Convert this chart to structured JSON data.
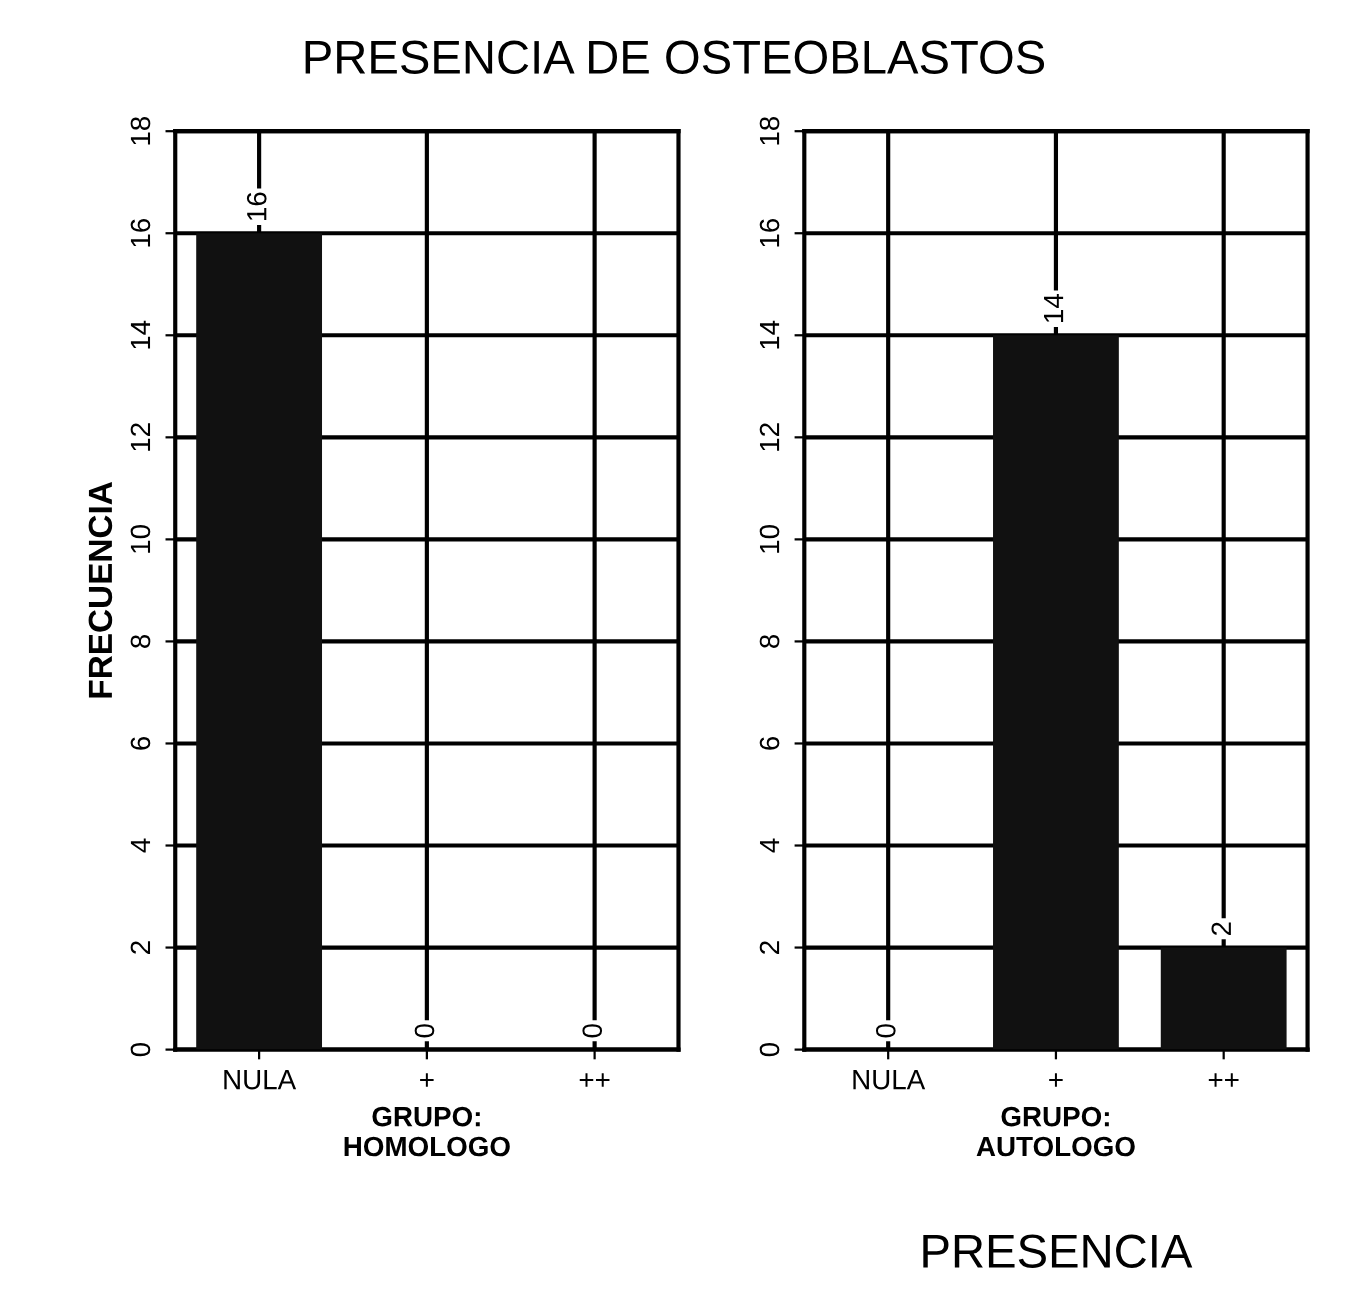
{
  "chart_data": [
    {
      "type": "bar",
      "title": "PRESENCIA DE OSTEOBLASTOS",
      "xlabel": "GRUPO:\nHOMOLOGO",
      "ylabel": "FRECUENCIA",
      "categories": [
        "NULA",
        "+",
        "++"
      ],
      "values": [
        16,
        0,
        0
      ],
      "color": "#111111",
      "ylim": [
        0,
        18
      ],
      "yticks": [
        0,
        2,
        4,
        6,
        8,
        10,
        12,
        14,
        16,
        18
      ],
      "grid": true,
      "data_labels": true
    },
    {
      "type": "bar",
      "xlabel": "GRUPO:\nAUTOLOGO",
      "annotations": [
        "PRESENCIA"
      ],
      "categories": [
        "NULA",
        "+",
        "++"
      ],
      "values": [
        0,
        14,
        2
      ],
      "color": "#111111",
      "ylim": [
        0,
        18
      ],
      "yticks": [
        0,
        2,
        4,
        6,
        8,
        10,
        12,
        14,
        16,
        18
      ],
      "grid": true,
      "data_labels": true
    }
  ]
}
